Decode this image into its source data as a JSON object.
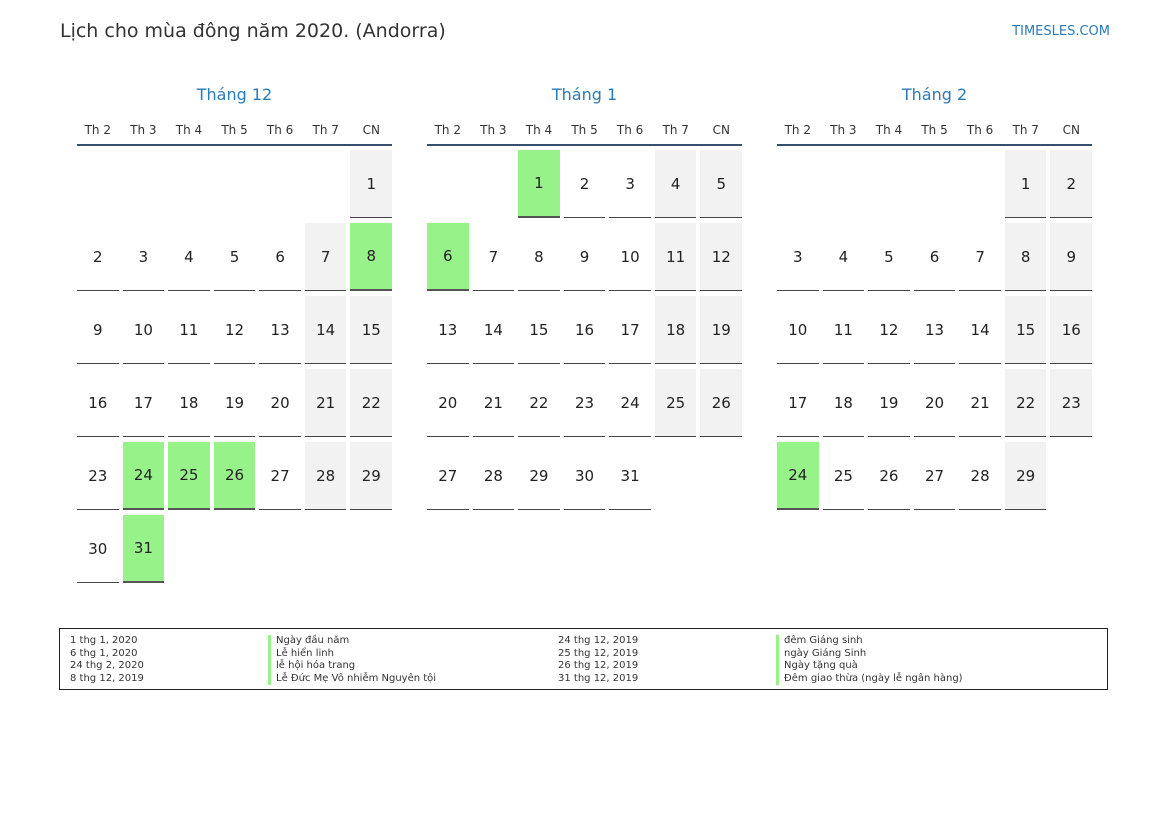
{
  "header": {
    "title": "Lịch cho mùa đông năm 2020. (Andorra)",
    "brand": "TIMESLES.COM"
  },
  "weekdays": [
    "Th 2",
    "Th 3",
    "Th 4",
    "Th 5",
    "Th 6",
    "Th 7",
    "CN"
  ],
  "months": [
    {
      "name": "Tháng 12",
      "weeks": [
        [
          null,
          null,
          null,
          null,
          null,
          null,
          {
            "d": "1",
            "w": true
          }
        ],
        [
          {
            "d": "2"
          },
          {
            "d": "3"
          },
          {
            "d": "4"
          },
          {
            "d": "5"
          },
          {
            "d": "6"
          },
          {
            "d": "7",
            "w": true
          },
          {
            "d": "8",
            "w": true,
            "h": true
          }
        ],
        [
          {
            "d": "9"
          },
          {
            "d": "10"
          },
          {
            "d": "11"
          },
          {
            "d": "12"
          },
          {
            "d": "13"
          },
          {
            "d": "14",
            "w": true
          },
          {
            "d": "15",
            "w": true
          }
        ],
        [
          {
            "d": "16"
          },
          {
            "d": "17"
          },
          {
            "d": "18"
          },
          {
            "d": "19"
          },
          {
            "d": "20"
          },
          {
            "d": "21",
            "w": true
          },
          {
            "d": "22",
            "w": true
          }
        ],
        [
          {
            "d": "23"
          },
          {
            "d": "24",
            "h": true
          },
          {
            "d": "25",
            "h": true
          },
          {
            "d": "26",
            "h": true
          },
          {
            "d": "27"
          },
          {
            "d": "28",
            "w": true
          },
          {
            "d": "29",
            "w": true
          }
        ],
        [
          {
            "d": "30"
          },
          {
            "d": "31",
            "h": true
          },
          null,
          null,
          null,
          null,
          null
        ]
      ]
    },
    {
      "name": "Tháng 1",
      "weeks": [
        [
          null,
          null,
          {
            "d": "1",
            "h": true
          },
          {
            "d": "2"
          },
          {
            "d": "3"
          },
          {
            "d": "4",
            "w": true
          },
          {
            "d": "5",
            "w": true
          }
        ],
        [
          {
            "d": "6",
            "h": true
          },
          {
            "d": "7"
          },
          {
            "d": "8"
          },
          {
            "d": "9"
          },
          {
            "d": "10"
          },
          {
            "d": "11",
            "w": true
          },
          {
            "d": "12",
            "w": true
          }
        ],
        [
          {
            "d": "13"
          },
          {
            "d": "14"
          },
          {
            "d": "15"
          },
          {
            "d": "16"
          },
          {
            "d": "17"
          },
          {
            "d": "18",
            "w": true
          },
          {
            "d": "19",
            "w": true
          }
        ],
        [
          {
            "d": "20"
          },
          {
            "d": "21"
          },
          {
            "d": "22"
          },
          {
            "d": "23"
          },
          {
            "d": "24"
          },
          {
            "d": "25",
            "w": true
          },
          {
            "d": "26",
            "w": true
          }
        ],
        [
          {
            "d": "27"
          },
          {
            "d": "28"
          },
          {
            "d": "29"
          },
          {
            "d": "30"
          },
          {
            "d": "31"
          },
          null,
          null
        ]
      ]
    },
    {
      "name": "Tháng 2",
      "weeks": [
        [
          null,
          null,
          null,
          null,
          null,
          {
            "d": "1",
            "w": true
          },
          {
            "d": "2",
            "w": true
          }
        ],
        [
          {
            "d": "3"
          },
          {
            "d": "4"
          },
          {
            "d": "5"
          },
          {
            "d": "6"
          },
          {
            "d": "7"
          },
          {
            "d": "8",
            "w": true
          },
          {
            "d": "9",
            "w": true
          }
        ],
        [
          {
            "d": "10"
          },
          {
            "d": "11"
          },
          {
            "d": "12"
          },
          {
            "d": "13"
          },
          {
            "d": "14"
          },
          {
            "d": "15",
            "w": true
          },
          {
            "d": "16",
            "w": true
          }
        ],
        [
          {
            "d": "17"
          },
          {
            "d": "18"
          },
          {
            "d": "19"
          },
          {
            "d": "20"
          },
          {
            "d": "21"
          },
          {
            "d": "22",
            "w": true
          },
          {
            "d": "23",
            "w": true
          }
        ],
        [
          {
            "d": "24",
            "h": true
          },
          {
            "d": "25"
          },
          {
            "d": "26"
          },
          {
            "d": "27"
          },
          {
            "d": "28"
          },
          {
            "d": "29",
            "w": true
          },
          null
        ]
      ]
    }
  ],
  "legend": {
    "dates_1": [
      "1 thg 1, 2020",
      "6 thg 1, 2020",
      "24 thg 2, 2020",
      "8 thg 12, 2019"
    ],
    "names_1": [
      "Ngày đầu năm",
      "Lễ hiển linh",
      "lễ hội hóa trang",
      "Lễ Đức Mẹ Vô nhiễm Nguyên tội"
    ],
    "dates_2": [
      "24 thg 12, 2019",
      "25 thg 12, 2019",
      "26 thg 12, 2019",
      "31 thg 12, 2019"
    ],
    "names_2": [
      "đêm Giáng sinh",
      "ngày Giáng Sinh",
      "Ngày tặng quà",
      "Đêm giao thừa (ngày lễ ngân hàng)"
    ]
  },
  "colors": {
    "accent": "#2a7ab8",
    "holiday": "#98f28a",
    "weekend": "#f2f2f2"
  }
}
